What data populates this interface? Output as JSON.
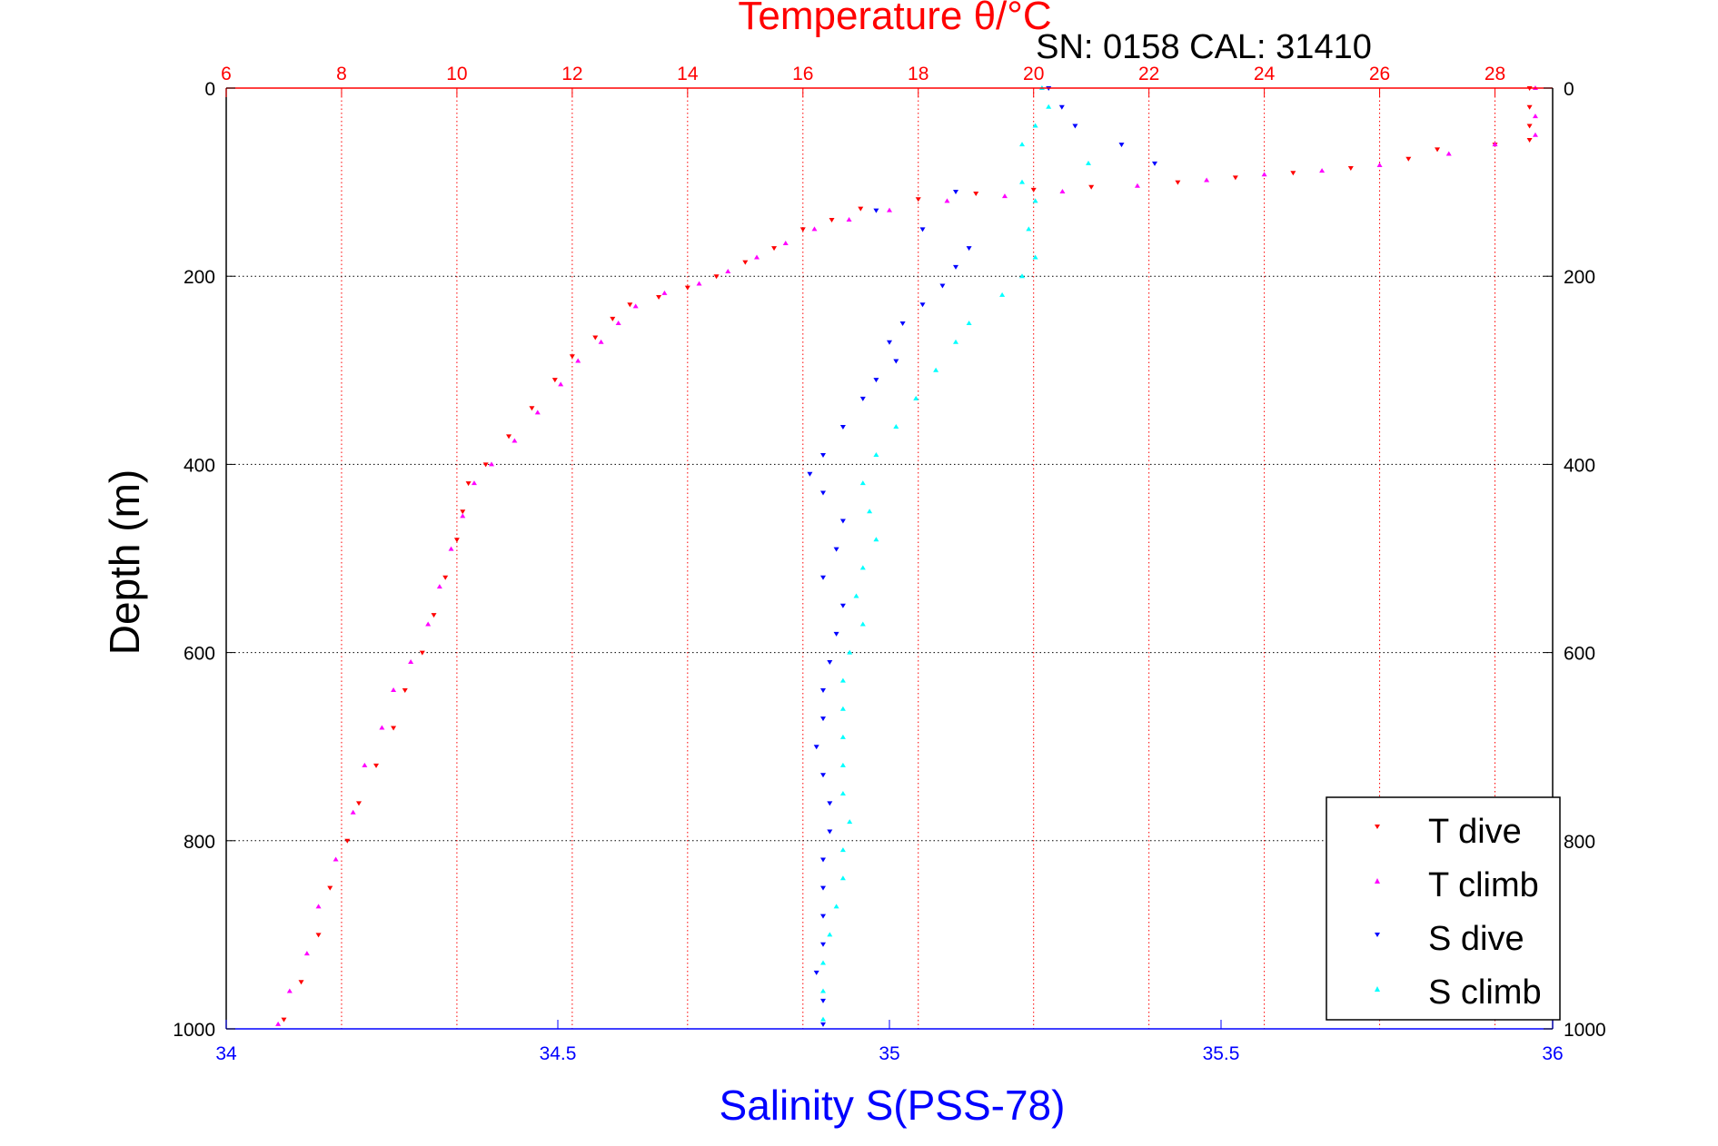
{
  "chart_data": {
    "type": "scatter",
    "title": "Temperature θ/°C",
    "subtitle": "SN: 0158  CAL: 31410",
    "xlabel": "Salinity S(PSS-78)",
    "ylabel": "Depth (m)",
    "top_xlabel": "Temperature θ/°C",
    "salinity_range": [
      34,
      36
    ],
    "temperature_range": [
      6,
      29
    ],
    "depth_range": [
      0,
      1000
    ],
    "y_reversed": true,
    "grid": true,
    "legend_position": "bottom-right",
    "salinity_ticks": [
      "34",
      "34.5",
      "35",
      "35.5",
      "36"
    ],
    "temperature_ticks": [
      "6",
      "8",
      "10",
      "12",
      "14",
      "16",
      "18",
      "20",
      "22",
      "24",
      "26",
      "28"
    ],
    "depth_ticks": [
      "0",
      "200",
      "400",
      "600",
      "800",
      "1000"
    ],
    "colors": {
      "t_dive": "#ff0000",
      "t_climb": "#ff00ff",
      "s_dive": "#0000ff",
      "s_climb": "#00ffff",
      "top_axis": "#ff0000",
      "bottom_axis": "#0000ff",
      "grid_vertical": "#ff0000",
      "grid_horizontal": "#000000"
    },
    "series": [
      {
        "name": "T dive",
        "axis": "temperature",
        "points": [
          [
            28.6,
            0
          ],
          [
            28.6,
            20
          ],
          [
            28.6,
            40
          ],
          [
            28.6,
            55
          ],
          [
            28.0,
            60
          ],
          [
            27.0,
            65
          ],
          [
            26.5,
            75
          ],
          [
            25.5,
            85
          ],
          [
            24.5,
            90
          ],
          [
            23.5,
            95
          ],
          [
            22.5,
            100
          ],
          [
            21.0,
            105
          ],
          [
            20.0,
            108
          ],
          [
            19.0,
            112
          ],
          [
            18.0,
            118
          ],
          [
            17.0,
            128
          ],
          [
            16.5,
            140
          ],
          [
            16.0,
            150
          ],
          [
            15.5,
            170
          ],
          [
            15.0,
            185
          ],
          [
            14.5,
            200
          ],
          [
            14.0,
            212
          ],
          [
            13.5,
            222
          ],
          [
            13.0,
            230
          ],
          [
            12.7,
            245
          ],
          [
            12.4,
            265
          ],
          [
            12.0,
            285
          ],
          [
            11.7,
            310
          ],
          [
            11.3,
            340
          ],
          [
            10.9,
            370
          ],
          [
            10.5,
            400
          ],
          [
            10.2,
            420
          ],
          [
            10.1,
            450
          ],
          [
            10.0,
            480
          ],
          [
            9.8,
            520
          ],
          [
            9.6,
            560
          ],
          [
            9.4,
            600
          ],
          [
            9.1,
            640
          ],
          [
            8.9,
            680
          ],
          [
            8.6,
            720
          ],
          [
            8.3,
            760
          ],
          [
            8.1,
            800
          ],
          [
            7.8,
            850
          ],
          [
            7.6,
            900
          ],
          [
            7.3,
            950
          ],
          [
            7.0,
            990
          ]
        ]
      },
      {
        "name": "T climb",
        "axis": "temperature",
        "points": [
          [
            28.7,
            0
          ],
          [
            28.7,
            30
          ],
          [
            28.7,
            50
          ],
          [
            28.0,
            60
          ],
          [
            27.2,
            70
          ],
          [
            26.0,
            82
          ],
          [
            25.0,
            88
          ],
          [
            24.0,
            92
          ],
          [
            23.0,
            98
          ],
          [
            21.8,
            104
          ],
          [
            20.5,
            110
          ],
          [
            19.5,
            115
          ],
          [
            18.5,
            120
          ],
          [
            17.5,
            130
          ],
          [
            16.8,
            140
          ],
          [
            16.2,
            150
          ],
          [
            15.7,
            165
          ],
          [
            15.2,
            180
          ],
          [
            14.7,
            195
          ],
          [
            14.2,
            208
          ],
          [
            13.6,
            218
          ],
          [
            13.1,
            232
          ],
          [
            12.8,
            250
          ],
          [
            12.5,
            270
          ],
          [
            12.1,
            290
          ],
          [
            11.8,
            315
          ],
          [
            11.4,
            345
          ],
          [
            11.0,
            375
          ],
          [
            10.6,
            400
          ],
          [
            10.3,
            420
          ],
          [
            10.1,
            455
          ],
          [
            9.9,
            490
          ],
          [
            9.7,
            530
          ],
          [
            9.5,
            570
          ],
          [
            9.2,
            610
          ],
          [
            8.9,
            640
          ],
          [
            8.7,
            680
          ],
          [
            8.4,
            720
          ],
          [
            8.2,
            770
          ],
          [
            7.9,
            820
          ],
          [
            7.6,
            870
          ],
          [
            7.4,
            920
          ],
          [
            7.1,
            960
          ],
          [
            6.9,
            995
          ]
        ]
      },
      {
        "name": "S dive",
        "axis": "salinity",
        "points": [
          [
            35.24,
            0
          ],
          [
            35.26,
            20
          ],
          [
            35.28,
            40
          ],
          [
            35.35,
            60
          ],
          [
            35.4,
            80
          ],
          [
            35.1,
            110
          ],
          [
            34.98,
            130
          ],
          [
            35.05,
            150
          ],
          [
            35.12,
            170
          ],
          [
            35.1,
            190
          ],
          [
            35.08,
            210
          ],
          [
            35.05,
            230
          ],
          [
            35.02,
            250
          ],
          [
            35.0,
            270
          ],
          [
            35.01,
            290
          ],
          [
            34.98,
            310
          ],
          [
            34.96,
            330
          ],
          [
            34.93,
            360
          ],
          [
            34.9,
            390
          ],
          [
            34.88,
            410
          ],
          [
            34.9,
            430
          ],
          [
            34.93,
            460
          ],
          [
            34.92,
            490
          ],
          [
            34.9,
            520
          ],
          [
            34.93,
            550
          ],
          [
            34.92,
            580
          ],
          [
            34.91,
            610
          ],
          [
            34.9,
            640
          ],
          [
            34.9,
            670
          ],
          [
            34.89,
            700
          ],
          [
            34.9,
            730
          ],
          [
            34.91,
            760
          ],
          [
            34.91,
            790
          ],
          [
            34.9,
            820
          ],
          [
            34.9,
            850
          ],
          [
            34.9,
            880
          ],
          [
            34.9,
            910
          ],
          [
            34.89,
            940
          ],
          [
            34.9,
            970
          ],
          [
            34.9,
            995
          ]
        ]
      },
      {
        "name": "S climb",
        "axis": "salinity",
        "points": [
          [
            35.23,
            0
          ],
          [
            35.24,
            20
          ],
          [
            35.22,
            40
          ],
          [
            35.2,
            60
          ],
          [
            35.3,
            80
          ],
          [
            35.2,
            100
          ],
          [
            35.22,
            120
          ],
          [
            35.21,
            150
          ],
          [
            35.22,
            180
          ],
          [
            35.2,
            200
          ],
          [
            35.17,
            220
          ],
          [
            35.12,
            250
          ],
          [
            35.1,
            270
          ],
          [
            35.07,
            300
          ],
          [
            35.04,
            330
          ],
          [
            35.01,
            360
          ],
          [
            34.98,
            390
          ],
          [
            34.96,
            420
          ],
          [
            34.97,
            450
          ],
          [
            34.98,
            480
          ],
          [
            34.96,
            510
          ],
          [
            34.95,
            540
          ],
          [
            34.96,
            570
          ],
          [
            34.94,
            600
          ],
          [
            34.93,
            630
          ],
          [
            34.93,
            660
          ],
          [
            34.93,
            690
          ],
          [
            34.93,
            720
          ],
          [
            34.93,
            750
          ],
          [
            34.94,
            780
          ],
          [
            34.93,
            810
          ],
          [
            34.93,
            840
          ],
          [
            34.92,
            870
          ],
          [
            34.91,
            900
          ],
          [
            34.9,
            930
          ],
          [
            34.9,
            960
          ],
          [
            34.9,
            990
          ]
        ]
      }
    ]
  }
}
